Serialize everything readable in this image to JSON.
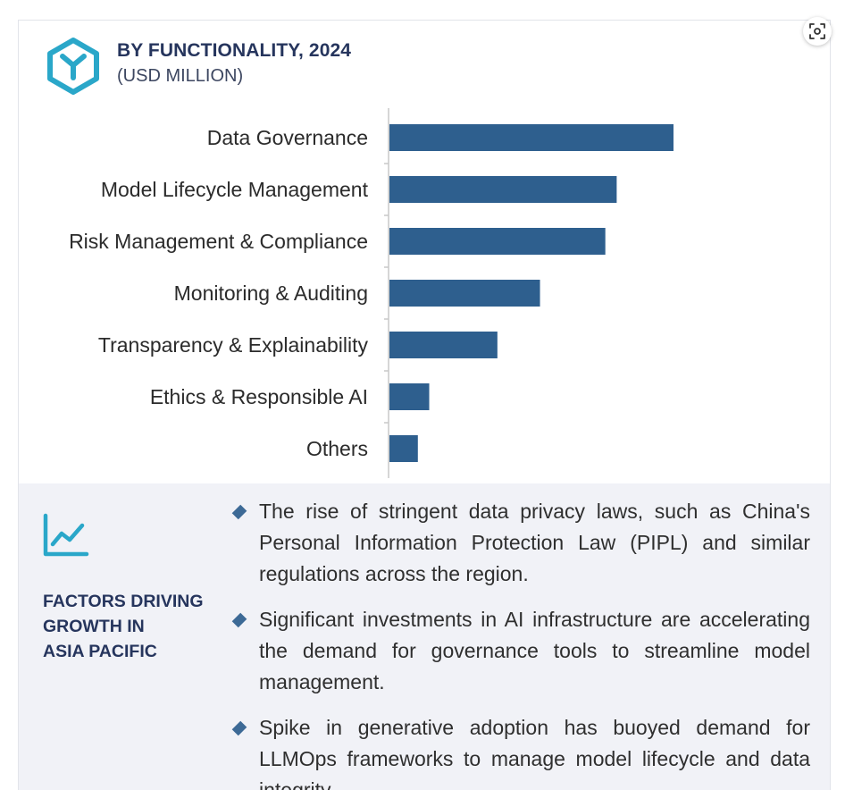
{
  "header": {
    "title": "BY FUNCTIONALITY, 2024",
    "subtitle": "(USD MILLION)",
    "logo_icon": "cube-y-icon"
  },
  "chart_data": {
    "type": "bar",
    "orientation": "horizontal",
    "title": "BY FUNCTIONALITY, 2024",
    "subtitle": "(USD MILLION)",
    "categories": [
      "Data Governance",
      "Model Lifecycle Management",
      "Risk Management & Compliance",
      "Monitoring & Auditing",
      "Transparency & Explainability",
      "Ethics & Responsible AI",
      "Others"
    ],
    "values": [
      100,
      80,
      76,
      53,
      38,
      14,
      10
    ],
    "value_scale": "relative (no axis values printed)",
    "bar_color": "#2e5f8e",
    "xlim": [
      0,
      100
    ],
    "grid": false,
    "legend": "none"
  },
  "factors": {
    "icon": "trend-chart-icon",
    "title_lines": [
      "FACTORS DRIVING",
      "GROWTH IN",
      "ASIA PACIFIC"
    ],
    "bullets": [
      "The rise of stringent data privacy laws, such as China's Personal Information Protection Law (PIPL) and similar regulations across the region.",
      "Significant investments in AI infrastructure are accelerating the demand for governance tools to streamline model management.",
      "Spike in generative adoption has buoyed demand for LLMOps frameworks to manage model lifecycle and data integrity."
    ]
  },
  "colors": {
    "accent_teal": "#2aa7c9",
    "heading_navy": "#26355d",
    "bullet_blue": "#3d6a96",
    "panel_bg": "#f1f2f7"
  },
  "zoom_button": {
    "icon": "zoom-focus-icon"
  }
}
